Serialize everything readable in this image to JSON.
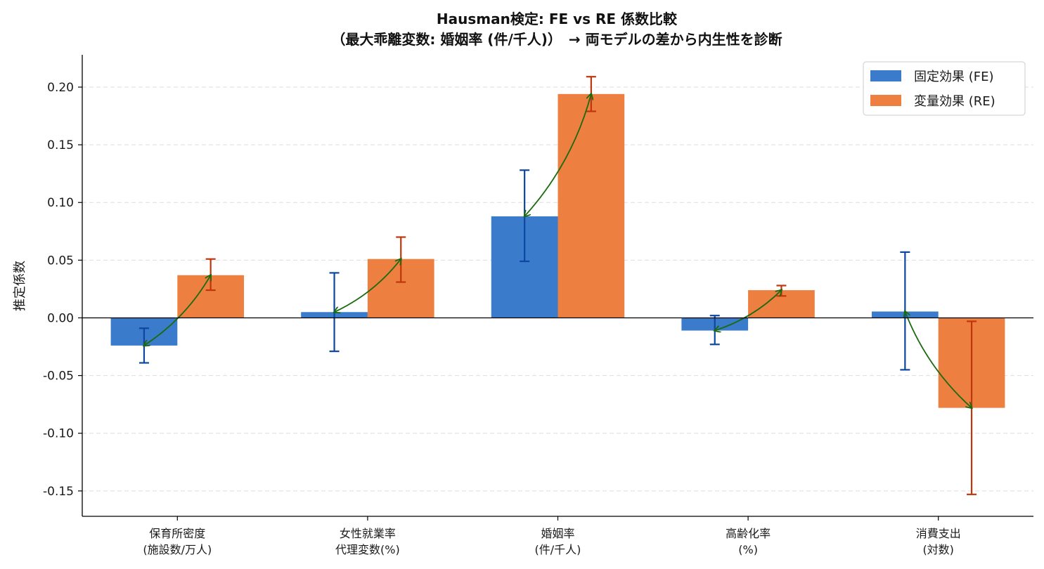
{
  "chart_data": {
    "type": "bar",
    "title": "Hausman検定: FE vs RE 係数比較",
    "subtitle": "（最大乖離変数: 婚姻率 (件/千人)）　→ 両モデルの差から内生性を診断",
    "xlabel": "",
    "ylabel": "推定係数",
    "ylim": [
      -0.172,
      0.228
    ],
    "yticks": [
      0.2,
      0.15,
      0.1,
      0.05,
      0.0,
      -0.05,
      -0.1,
      -0.15
    ],
    "ytick_labels": [
      "0.20",
      "0.15",
      "0.10",
      "0.05",
      "0.00",
      "-0.05",
      "-0.10",
      "-0.15"
    ],
    "grid": "horizontal dashed",
    "legend_position": "top-right",
    "categories": [
      [
        "保育所密度",
        "(施設数/万人)"
      ],
      [
        "女性就業率",
        "代理変数(%)"
      ],
      [
        "婚姻率",
        "(件/千人)"
      ],
      [
        "高齢化率",
        "(%)"
      ],
      [
        "消費支出",
        "(対数)"
      ]
    ],
    "series": [
      {
        "name": "固定効果 (FE)",
        "color": "#3a7bcb",
        "error_color": "#0d47a1",
        "values": [
          -0.024,
          0.005,
          0.088,
          -0.011,
          0.0055
        ],
        "err_low": [
          -0.039,
          -0.029,
          0.049,
          -0.023,
          -0.045
        ],
        "err_high": [
          -0.009,
          0.039,
          0.128,
          0.002,
          0.057
        ]
      },
      {
        "name": "変量効果 (RE)",
        "color": "#ed7f41",
        "error_color": "#bf360c",
        "values": [
          0.037,
          0.051,
          0.194,
          0.024,
          -0.078
        ],
        "err_low": [
          0.024,
          0.031,
          0.179,
          0.019,
          -0.153
        ],
        "err_high": [
          0.051,
          0.07,
          0.209,
          0.028,
          -0.003
        ]
      }
    ],
    "arrow_color": "#1b6b0e"
  }
}
